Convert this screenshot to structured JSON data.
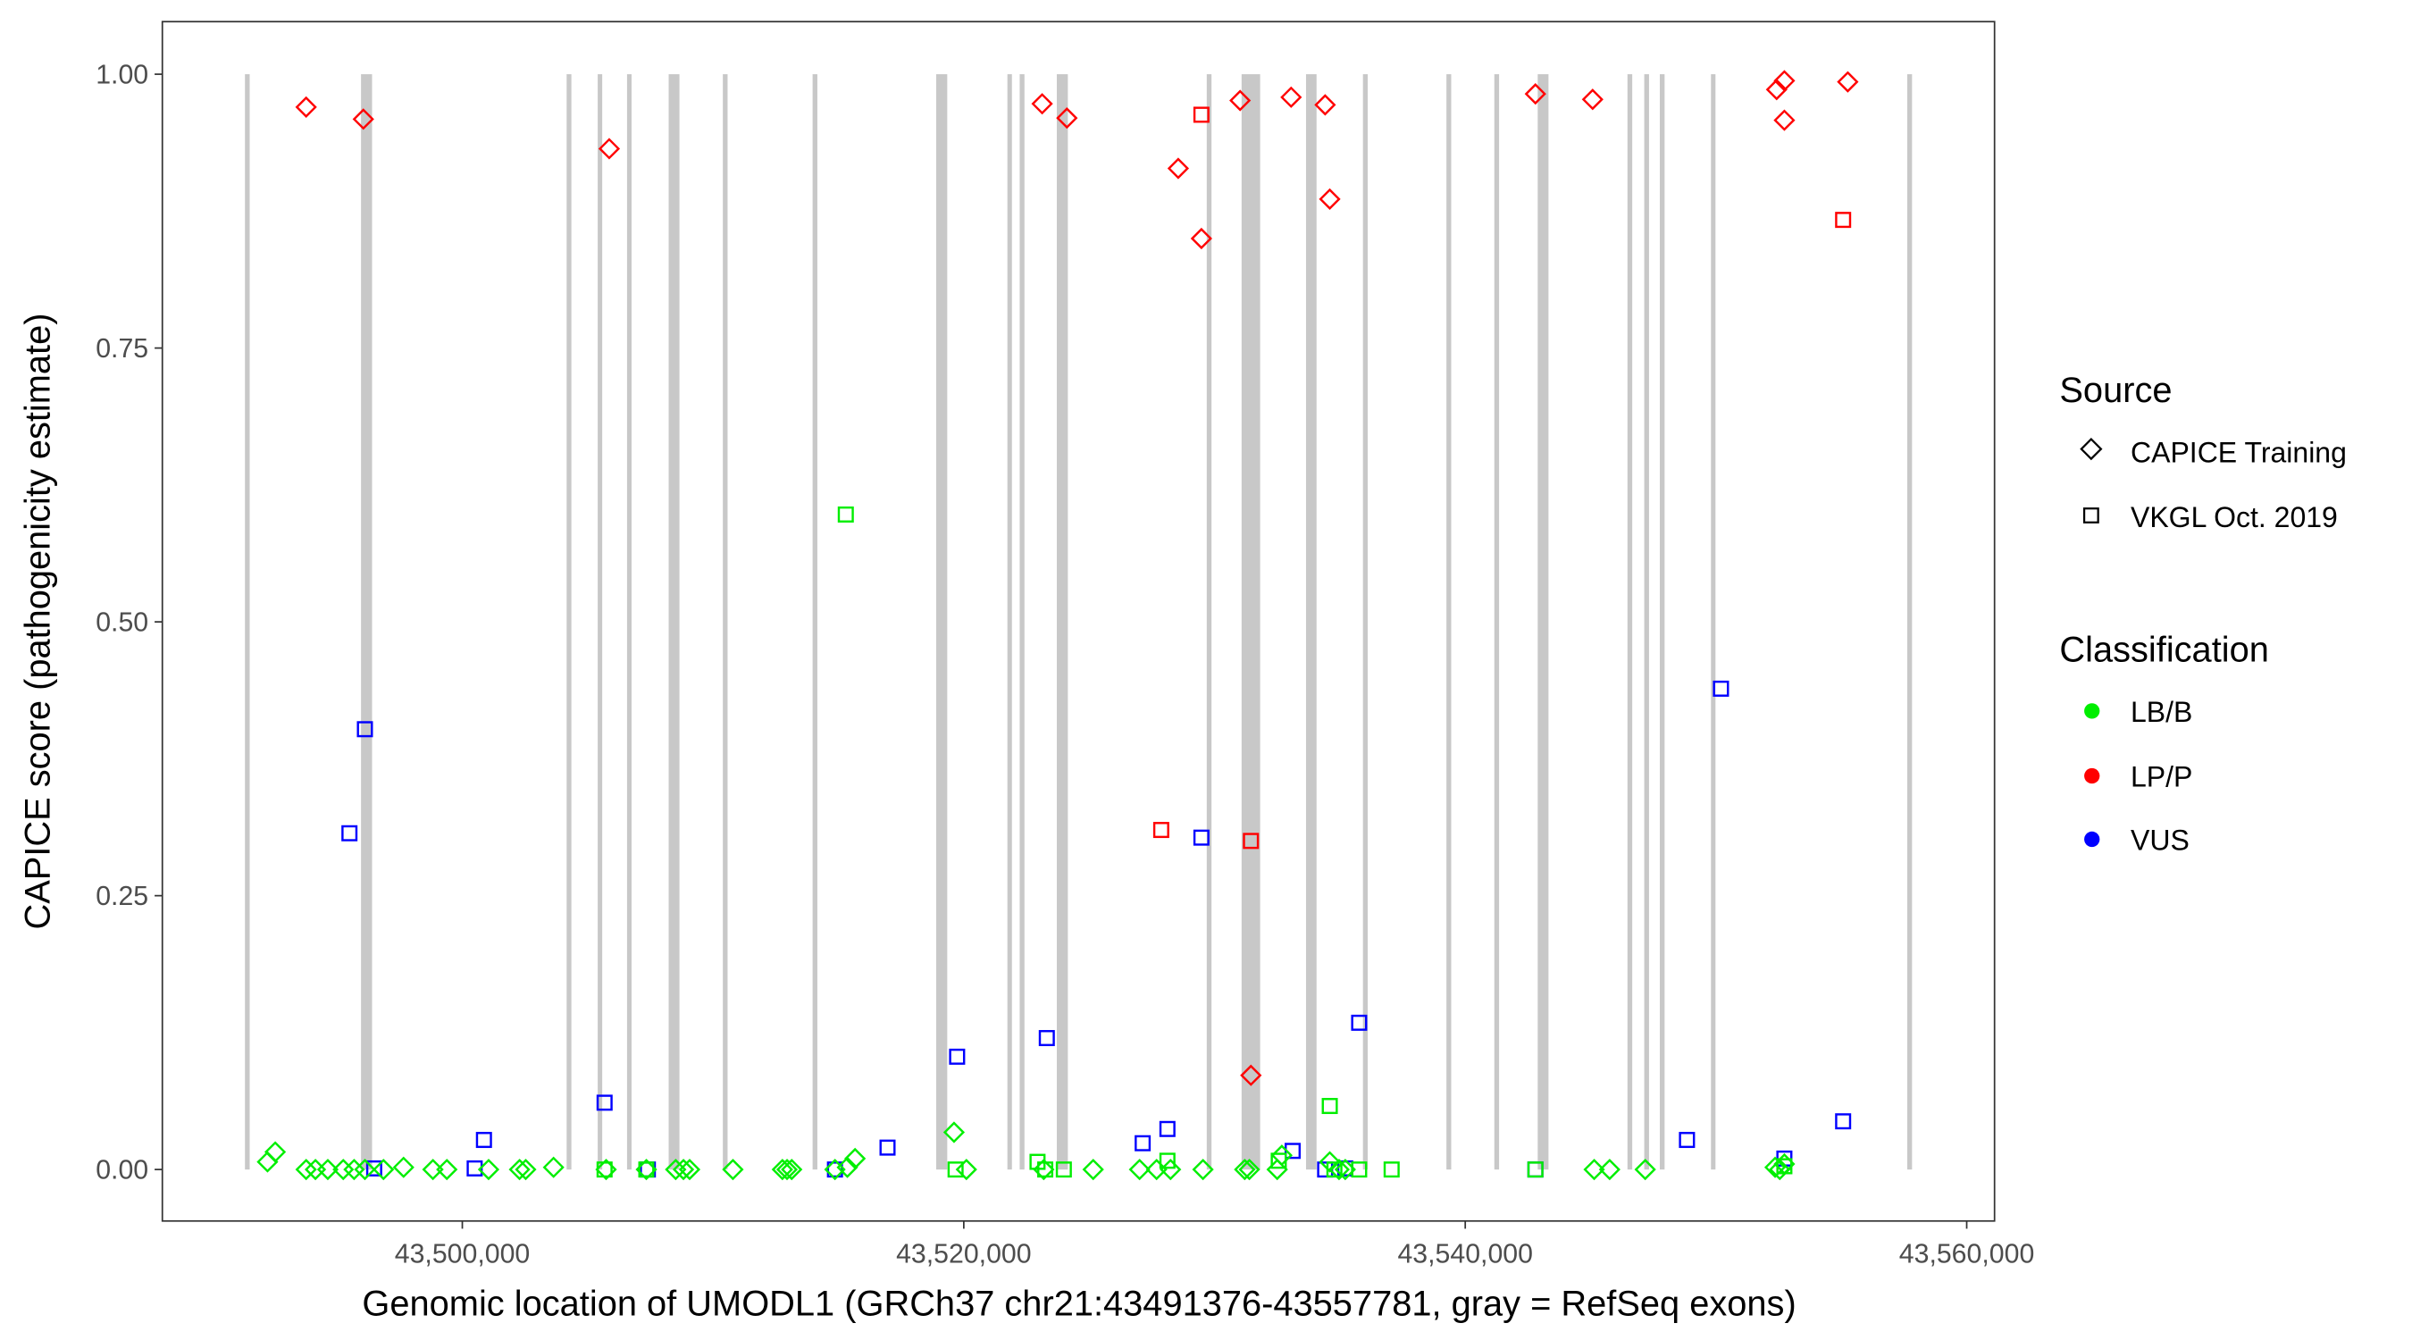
{
  "chart_data": {
    "type": "scatter",
    "title": "",
    "xlabel": "Genomic location of UMODL1 (GRCh37 chr21:43491376-43557781, gray = RefSeq exons)",
    "ylabel": "CAPICE score (pathogenicity estimate)",
    "xlim": [
      43488036,
      43561110
    ],
    "ylim": [
      -0.047,
      1.048
    ],
    "x_ticks": [
      43500000,
      43520000,
      43540000,
      43560000
    ],
    "x_tick_labels": [
      "43,500,000",
      "43,520,000",
      "43,540,000",
      "43,560,000"
    ],
    "y_ticks": [
      0,
      0.25,
      0.5,
      0.75,
      1.0
    ],
    "y_tick_labels": [
      "0.00",
      "0.25",
      "0.50",
      "0.75",
      "1.00"
    ],
    "grid": false,
    "legend_placement": "right",
    "legend": {
      "source_title": "Source",
      "source_entries": [
        {
          "label": "CAPICE Training",
          "shape": "diamond"
        },
        {
          "label": "VKGL Oct. 2019",
          "shape": "square"
        }
      ],
      "class_title": "Classification",
      "class_entries": [
        {
          "label": "LB/B",
          "color": "#00ee00"
        },
        {
          "label": "LP/P",
          "color": "#ff0000"
        },
        {
          "label": "VUS",
          "color": "#0000ff"
        }
      ]
    },
    "exons": [
      [
        43491330,
        43491520
      ],
      [
        43495960,
        43496400
      ],
      [
        43504160,
        43504350
      ],
      [
        43505400,
        43505580
      ],
      [
        43506570,
        43506750
      ],
      [
        43508230,
        43508660
      ],
      [
        43510390,
        43510580
      ],
      [
        43513970,
        43514160
      ],
      [
        43518900,
        43519340
      ],
      [
        43521740,
        43521920
      ],
      [
        43522230,
        43522420
      ],
      [
        43523710,
        43524150
      ],
      [
        43529690,
        43529880
      ],
      [
        43531080,
        43531820
      ],
      [
        43533650,
        43534070
      ],
      [
        43535920,
        43536110
      ],
      [
        43539250,
        43539440
      ],
      [
        43541160,
        43541350
      ],
      [
        43542890,
        43543320
      ],
      [
        43546470,
        43546660
      ],
      [
        43547140,
        43547330
      ],
      [
        43547760,
        43547950
      ],
      [
        43549800,
        43549980
      ],
      [
        43557630,
        43557820
      ]
    ],
    "series": [
      {
        "name": "CAPICE Training / LP/P",
        "shape": "diamond",
        "color": "#ff0000",
        "points": [
          [
            43493771,
            0.97
          ],
          [
            43496053,
            0.959
          ],
          [
            43505859,
            0.932
          ],
          [
            43523126,
            0.973
          ],
          [
            43524113,
            0.96
          ],
          [
            43528553,
            0.914
          ],
          [
            43529478,
            0.85
          ],
          [
            43531020,
            0.976
          ],
          [
            43533055,
            0.979
          ],
          [
            43534412,
            0.972
          ],
          [
            43534597,
            0.886
          ],
          [
            43542799,
            0.982
          ],
          [
            43545081,
            0.977
          ],
          [
            43552420,
            0.986
          ],
          [
            43552728,
            0.994
          ],
          [
            43552728,
            0.958
          ],
          [
            43555256,
            0.993
          ],
          [
            43531452,
            0.086
          ]
        ]
      },
      {
        "name": "VKGL Oct. 2019 / LP/P",
        "shape": "square",
        "color": "#ff0000",
        "points": [
          [
            43529478,
            0.963
          ],
          [
            43527875,
            0.31
          ],
          [
            43531452,
            0.3
          ],
          [
            43555071,
            0.867
          ]
        ]
      },
      {
        "name": "VKGL Oct. 2019 / VUS",
        "shape": "square",
        "color": "#0000ff",
        "points": [
          [
            43496115,
            0.402
          ],
          [
            43495498,
            0.307
          ],
          [
            43496485,
            0.001
          ],
          [
            43500493,
            0.001
          ],
          [
            43500863,
            0.027
          ],
          [
            43505674,
            0.061
          ],
          [
            43507400,
            0.0
          ],
          [
            43514862,
            0.0
          ],
          [
            43516959,
            0.02
          ],
          [
            43519734,
            0.103
          ],
          [
            43523311,
            0.12
          ],
          [
            43527135,
            0.024
          ],
          [
            43528122,
            0.037
          ],
          [
            43529478,
            0.303
          ],
          [
            43533117,
            0.017
          ],
          [
            43534412,
            0.0
          ],
          [
            43535214,
            0.001
          ],
          [
            43535769,
            0.134
          ],
          [
            43542799,
            0.0
          ],
          [
            43548843,
            0.027
          ],
          [
            43550199,
            0.439
          ],
          [
            43552728,
            0.01
          ],
          [
            43555071,
            0.044
          ]
        ]
      },
      {
        "name": "VKGL Oct. 2019 / LB/B",
        "shape": "square",
        "color": "#00ee00",
        "points": [
          [
            43515294,
            0.598
          ],
          [
            43505674,
            0.0
          ],
          [
            43507339,
            0.0
          ],
          [
            43519673,
            0.0
          ],
          [
            43522941,
            0.007
          ],
          [
            43523249,
            0.0
          ],
          [
            43523990,
            0.0
          ],
          [
            43528122,
            0.008
          ],
          [
            43532562,
            0.008
          ],
          [
            43534597,
            0.058
          ],
          [
            43534782,
            0.0
          ],
          [
            43535769,
            0.0
          ],
          [
            43537064,
            0.0
          ],
          [
            43552728,
            0.003
          ],
          [
            43542799,
            0.0
          ]
        ]
      },
      {
        "name": "CAPICE Training / LB/B",
        "shape": "diamond",
        "color": "#00ee00",
        "points": [
          [
            43492230,
            0.007
          ],
          [
            43492538,
            0.016
          ],
          [
            43493771,
            0
          ],
          [
            43494141,
            0
          ],
          [
            43494635,
            0
          ],
          [
            43495251,
            0
          ],
          [
            43495683,
            0
          ],
          [
            43496115,
            0
          ],
          [
            43496855,
            0
          ],
          [
            43497657,
            0.002
          ],
          [
            43498828,
            0
          ],
          [
            43499383,
            0
          ],
          [
            43501048,
            0
          ],
          [
            43502282,
            0
          ],
          [
            43502528,
            0
          ],
          [
            43503639,
            0.002
          ],
          [
            43505735,
            0
          ],
          [
            43507339,
            0
          ],
          [
            43508510,
            0
          ],
          [
            43508819,
            0
          ],
          [
            43509065,
            0
          ],
          [
            43510792,
            0
          ],
          [
            43512766,
            0
          ],
          [
            43512951,
            0
          ],
          [
            43513136,
            0
          ],
          [
            43514862,
            0
          ],
          [
            43515356,
            0.002
          ],
          [
            43515664,
            0.01
          ],
          [
            43519611,
            0.034
          ],
          [
            43520104,
            0
          ],
          [
            43523188,
            0
          ],
          [
            43525161,
            0
          ],
          [
            43527011,
            0
          ],
          [
            43527690,
            0
          ],
          [
            43528245,
            0
          ],
          [
            43529540,
            0
          ],
          [
            43531205,
            0
          ],
          [
            43531390,
            0
          ],
          [
            43532500,
            0
          ],
          [
            43532685,
            0.013
          ],
          [
            43534597,
            0.007
          ],
          [
            43534967,
            0
          ],
          [
            43535214,
            0
          ],
          [
            43545142,
            0
          ],
          [
            43545759,
            0
          ],
          [
            43547178,
            0
          ],
          [
            43552358,
            0.002
          ],
          [
            43552544,
            0
          ],
          [
            43552728,
            0.005
          ]
        ]
      }
    ]
  }
}
